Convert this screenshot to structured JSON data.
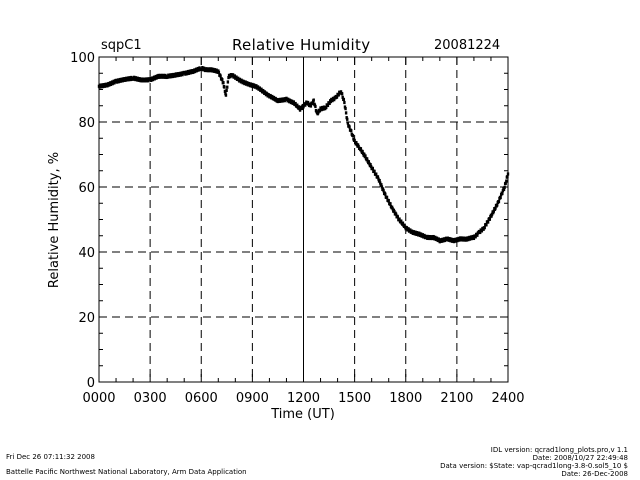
{
  "header": {
    "site": "sqpC1",
    "title": "Relative Humidity",
    "date": "20081224"
  },
  "footer": {
    "timestamp": "Fri Dec 26 07:11:32 2008",
    "institution": "Battelle Pacific Northwest National Laboratory, Arm Data Application",
    "idl_version": "IDL version: qcrad1long_plots.pro,v 1.1",
    "version_date": "Date: 2008/10/27 22:49:48",
    "data_version": "Data version: $State: vap-qcrad1long-3.8-0.sol5_10 $",
    "data_date": "Date: 26-Dec-2008"
  },
  "chart_data": {
    "type": "scatter",
    "title": "Relative Humidity",
    "xlabel": "Time (UT)",
    "ylabel": "Relative Humidity, %",
    "xlim": [
      0,
      2400
    ],
    "ylim": [
      0,
      100
    ],
    "x_ticks": [
      "0000",
      "0300",
      "0600",
      "0900",
      "1200",
      "1500",
      "1800",
      "2100",
      "2400"
    ],
    "x_tick_hours": [
      0,
      3,
      6,
      9,
      12,
      15,
      18,
      21,
      24
    ],
    "y_ticks": [
      0,
      20,
      40,
      60,
      80,
      100
    ],
    "grid": "dashed",
    "series": [
      {
        "name": "Relative Humidity",
        "x_hours": [
          0,
          0.5,
          1,
          1.5,
          2,
          2.5,
          3,
          3.5,
          4,
          4.5,
          5,
          5.5,
          6,
          6.3,
          6.6,
          7,
          7.3,
          7.45,
          7.6,
          7.8,
          8.2,
          8.6,
          8.8,
          9.2,
          9.6,
          10,
          10.5,
          11,
          11.4,
          11.8,
          12.2,
          12.4,
          12.6,
          12.8,
          13.0,
          13.3,
          13.6,
          13.9,
          14.2,
          14.4,
          14.6,
          14.8,
          15.0,
          15.3,
          15.6,
          16.0,
          16.4,
          16.8,
          17.2,
          17.6,
          18.0,
          18.4,
          18.8,
          19.2,
          19.6,
          20.0,
          20.4,
          20.8,
          21.2,
          21.6,
          22.0,
          22.3,
          22.6,
          23.0,
          23.4,
          23.8,
          24.0
        ],
        "y": [
          91,
          91.5,
          92.5,
          93,
          93.5,
          93,
          93,
          94,
          94,
          94.5,
          95,
          95.5,
          96.5,
          96,
          96,
          95.5,
          92,
          88,
          94,
          94.5,
          93,
          92,
          91.5,
          91,
          89.5,
          88,
          86.5,
          87,
          86,
          84,
          86,
          85,
          86.5,
          82.5,
          84,
          84.5,
          86.5,
          87.5,
          89.5,
          86,
          79.5,
          77,
          74,
          72,
          69.5,
          66,
          62.5,
          57.5,
          53.5,
          50,
          47.5,
          46,
          45.5,
          44.5,
          44.5,
          43.5,
          44,
          43.5,
          44,
          44,
          44.5,
          46,
          47.5,
          51,
          55,
          60,
          64
        ]
      }
    ]
  }
}
